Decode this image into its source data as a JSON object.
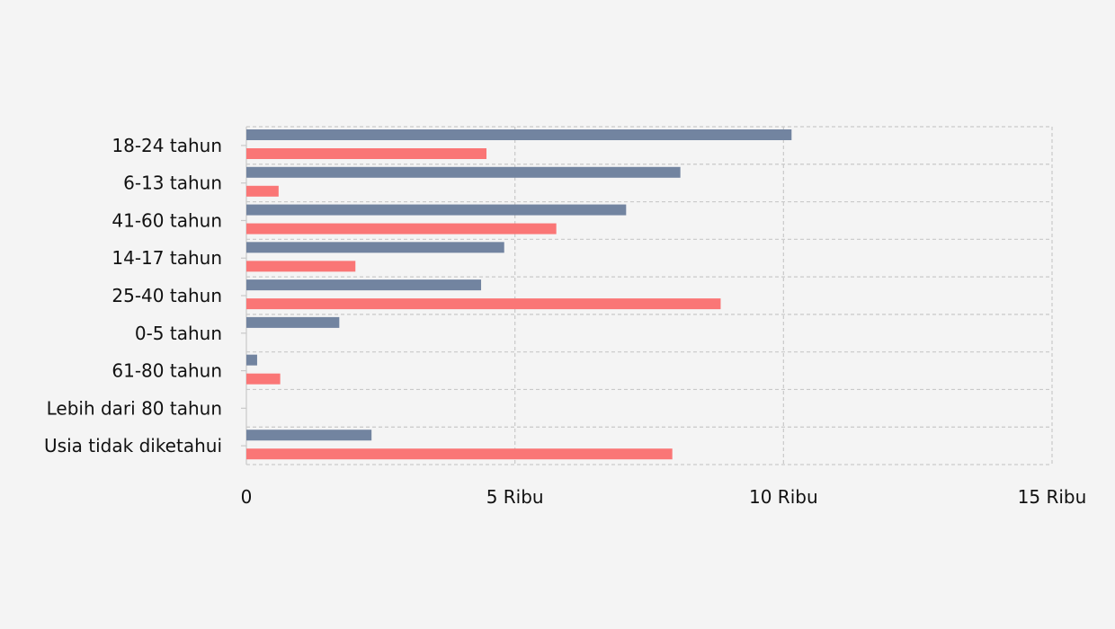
{
  "colors": {
    "background": "#f4f4f4",
    "grid": "#c9c9c9",
    "series_a": "#7284a0",
    "series_b": "#fa7676"
  },
  "chart_data": {
    "type": "bar",
    "orientation": "horizontal",
    "categories": [
      "18-24 tahun",
      "6-13 tahun",
      "41-60 tahun",
      "14-17 tahun",
      "25-40 tahun",
      "0-5 tahun",
      "61-80 tahun",
      "Lebih dari 80 tahun",
      "Usia tidak diketahui"
    ],
    "series": [
      {
        "color": "#7284a0",
        "values": [
          10150,
          8080,
          7070,
          4800,
          4370,
          1730,
          200,
          0,
          2330
        ]
      },
      {
        "color": "#fa7676",
        "values": [
          4470,
          600,
          5770,
          2030,
          8830,
          0,
          630,
          0,
          7930
        ]
      }
    ],
    "xlim": [
      0,
      15000
    ],
    "x_ticks": [
      {
        "value": 0,
        "label": "0"
      },
      {
        "value": 5000,
        "label": "5 Ribu"
      },
      {
        "value": 10000,
        "label": "10 Ribu"
      },
      {
        "value": 15000,
        "label": "15 Ribu"
      }
    ],
    "grid": true,
    "grid_style": "dashed",
    "legend": "none",
    "title": "",
    "xlabel": "",
    "ylabel": ""
  }
}
